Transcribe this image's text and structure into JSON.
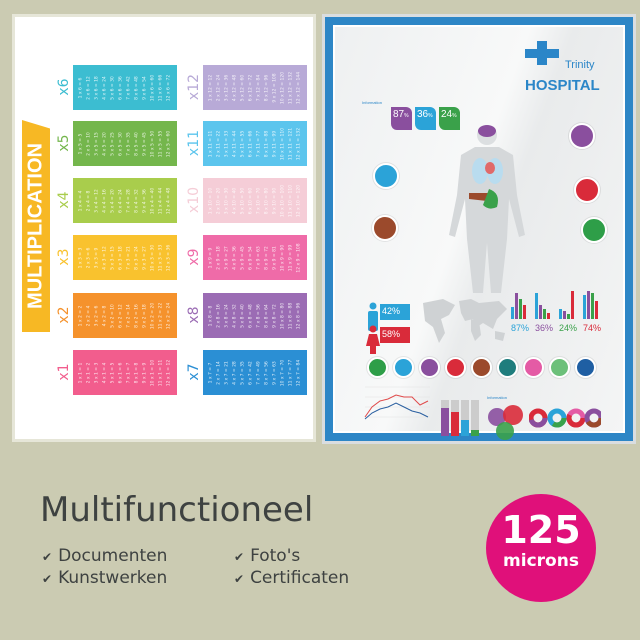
{
  "left_poster": {
    "banner": "MULTIPLICATION",
    "tables": [
      {
        "label": "x1",
        "color": "#f25d8d",
        "lines": [
          "1 x 1 = 1",
          "2 x 1 = 2",
          "3 x 1 = 3",
          "4 x 1 = 4",
          "5 x 1 = 5",
          "6 x 1 = 6",
          "7 x 1 = 7",
          "8 x 1 = 8",
          "9 x 1 = 9",
          "10 x 1 = 10",
          "11 x 1 = 11",
          "12 x 1 = 12"
        ]
      },
      {
        "label": "x2",
        "color": "#f5922c",
        "lines": [
          "1 x 2 = 2",
          "2 x 2 = 4",
          "3 x 2 = 6",
          "4 x 2 = 8",
          "5 x 2 = 10",
          "6 x 2 = 12",
          "7 x 2 = 14",
          "8 x 2 = 16",
          "9 x 2 = 18",
          "10 x 2 = 20",
          "11 x 2 = 22",
          "12 x 2 = 24"
        ]
      },
      {
        "label": "x3",
        "color": "#f9c22e",
        "lines": [
          "1 x 3 = 3",
          "2 x 3 = 6",
          "3 x 3 = 9",
          "4 x 3 = 12",
          "5 x 3 = 15",
          "6 x 3 = 18",
          "7 x 3 = 21",
          "8 x 3 = 24",
          "9 x 3 = 27",
          "10 x 3 = 30",
          "11 x 3 = 33",
          "12 x 3 = 36"
        ]
      },
      {
        "label": "x4",
        "color": "#a9cd4c",
        "lines": [
          "1 x 4 = 4",
          "2 x 4 = 8",
          "3 x 4 = 12",
          "4 x 4 = 16",
          "5 x 4 = 20",
          "6 x 4 = 24",
          "7 x 4 = 28",
          "8 x 4 = 32",
          "9 x 4 = 36",
          "10 x 4 = 40",
          "11 x 4 = 44",
          "12 x 4 = 48"
        ]
      },
      {
        "label": "x5",
        "color": "#74b64c",
        "lines": [
          "1 x 5 = 5",
          "2 x 5 = 10",
          "3 x 5 = 15",
          "4 x 5 = 20",
          "5 x 5 = 25",
          "6 x 5 = 30",
          "7 x 5 = 35",
          "8 x 5 = 40",
          "9 x 5 = 45",
          "10 x 5 = 50",
          "11 x 5 = 55",
          "12 x 5 = 60"
        ]
      },
      {
        "label": "x6",
        "color": "#3cbdd1",
        "lines": [
          "1 x 6 = 6",
          "2 x 6 = 12",
          "3 x 6 = 18",
          "4 x 6 = 24",
          "5 x 6 = 30",
          "6 x 6 = 36",
          "7 x 6 = 42",
          "8 x 6 = 48",
          "9 x 6 = 54",
          "10 x 6 = 60",
          "11 x 6 = 66",
          "12 x 6 = 72"
        ]
      },
      {
        "label": "x7",
        "color": "#2b8fd4",
        "lines": [
          "1 x 7 = 7",
          "2 x 7 = 14",
          "3 x 7 = 21",
          "4 x 7 = 28",
          "5 x 7 = 35",
          "6 x 7 = 42",
          "7 x 7 = 49",
          "8 x 7 = 56",
          "9 x 7 = 63",
          "10 x 7 = 70",
          "11 x 7 = 77",
          "12 x 7 = 84"
        ]
      },
      {
        "label": "x8",
        "color": "#9b6cb4",
        "lines": [
          "1 x 8 = 8",
          "2 x 8 = 16",
          "3 x 8 = 24",
          "4 x 8 = 32",
          "5 x 8 = 40",
          "6 x 8 = 48",
          "7 x 8 = 56",
          "8 x 8 = 64",
          "9 x 8 = 72",
          "10 x 8 = 80",
          "11 x 8 = 88",
          "12 x 8 = 96"
        ]
      },
      {
        "label": "x9",
        "color": "#ef6ba8",
        "lines": [
          "1 x 9 = 9",
          "2 x 9 = 18",
          "3 x 9 = 27",
          "4 x 9 = 36",
          "5 x 9 = 45",
          "6 x 9 = 54",
          "7 x 9 = 63",
          "8 x 9 = 72",
          "9 x 9 = 81",
          "10 x 9 = 90",
          "11 x 9 = 99",
          "12 x 9 = 108"
        ]
      },
      {
        "label": "x10",
        "color": "#f5cdd7",
        "lines": [
          "1 x 10 = 10",
          "2 x 10 = 20",
          "3 x 10 = 30",
          "4 x 10 = 40",
          "5 x 10 = 50",
          "6 x 10 = 60",
          "7 x 10 = 70",
          "8 x 10 = 80",
          "9 x 10 = 90",
          "10 x 10 = 100",
          "11 x 10 = 110",
          "12 x 10 = 120"
        ]
      },
      {
        "label": "x11",
        "color": "#5cc5ed",
        "lines": [
          "1 x 11 = 11",
          "2 x 11 = 22",
          "3 x 11 = 33",
          "4 x 11 = 44",
          "5 x 11 = 55",
          "6 x 11 = 66",
          "7 x 11 = 77",
          "8 x 11 = 88",
          "9 x 11 = 99",
          "10 x 11 = 110",
          "11 x 11 = 121",
          "12 x 11 = 132"
        ]
      },
      {
        "label": "x12",
        "color": "#b8aad7",
        "lines": [
          "1 x 12 = 12",
          "2 x 12 = 24",
          "3 x 12 = 36",
          "4 x 12 = 48",
          "5 x 12 = 60",
          "6 x 12 = 72",
          "7 x 12 = 84",
          "8 x 12 = 96",
          "9 x 12 = 108",
          "10 x 12 = 120",
          "11 x 12 = 132",
          "12 x 12 = 144"
        ]
      }
    ]
  },
  "right_poster": {
    "brand_top": "Trinity",
    "brand_main": "HOSPITAL",
    "info_heading": "Information",
    "top_stats": [
      {
        "value": "87",
        "unit": "%",
        "color": "#8a4f9e"
      },
      {
        "value": "36",
        "unit": "%",
        "color": "#2ba3d8"
      },
      {
        "value": "24",
        "unit": "%",
        "color": "#3aa14a"
      }
    ],
    "male_pct": "42%",
    "female_pct": "58%",
    "bar_pcts": [
      {
        "value": "87%",
        "color": "#2ba3d8"
      },
      {
        "value": "36%",
        "color": "#8a4f9e"
      },
      {
        "value": "24%",
        "color": "#3aa14a"
      },
      {
        "value": "74%",
        "color": "#d92b3a"
      }
    ],
    "icon_row": [
      {
        "icon": "stomach-icon",
        "color": "#2e9e48"
      },
      {
        "icon": "lungs-icon",
        "color": "#2ba3d8"
      },
      {
        "icon": "brain-icon",
        "color": "#8a4f9e"
      },
      {
        "icon": "heart-organ-icon",
        "color": "#d92b3a"
      },
      {
        "icon": "liver-icon",
        "color": "#9b4a2c"
      },
      {
        "icon": "tooth-icon",
        "color": "#1f7d7d"
      },
      {
        "icon": "heart-icon",
        "color": "#e45ba5"
      },
      {
        "icon": "bed-icon",
        "color": "#6cc07a"
      },
      {
        "icon": "apple-icon",
        "color": "#1f5fa3"
      }
    ],
    "info_heading_2": "Information"
  },
  "footer": {
    "title": "Multifunctioneel",
    "features": [
      "Documenten",
      "Kunstwerken",
      "Foto's",
      "Certificaten"
    ],
    "badge_number": "125",
    "badge_unit": "microns",
    "badge_color": "#e0107a"
  }
}
